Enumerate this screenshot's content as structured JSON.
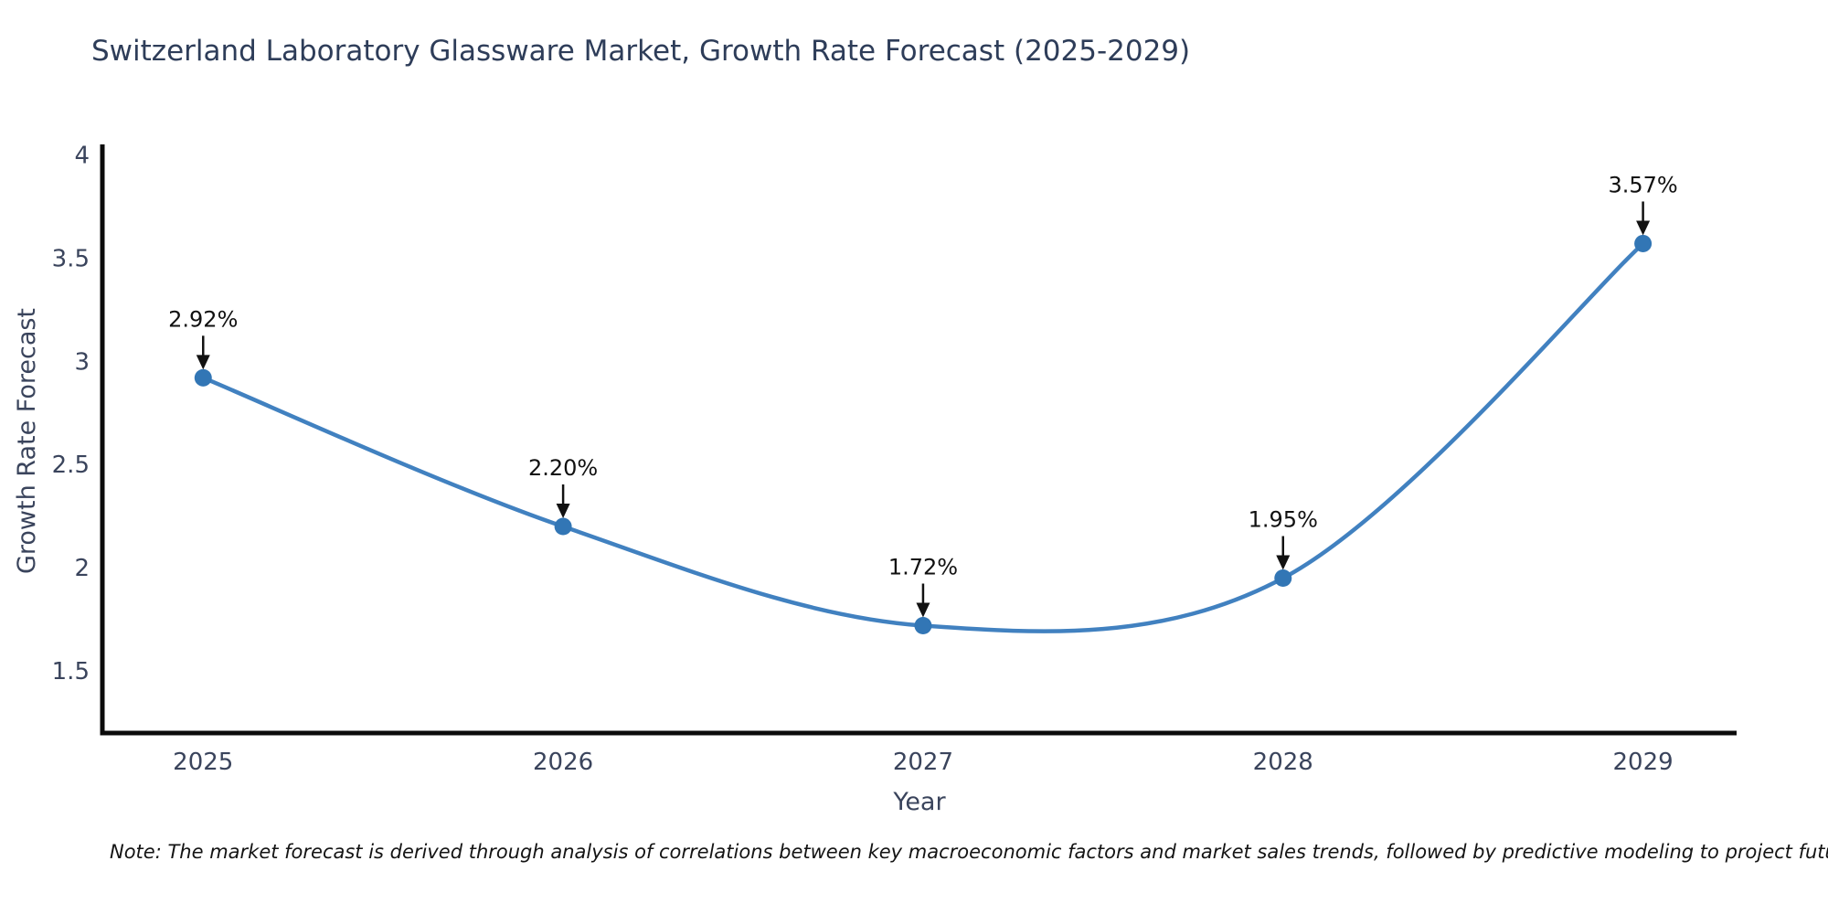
{
  "title": "Switzerland Laboratory Glassware Market, Growth Rate Forecast (2025-2029)",
  "note": "Note: The market forecast is derived through analysis of correlations between key macroeconomic factors and market sales trends, followed by predictive modeling to project future sales",
  "chart_data": {
    "type": "line",
    "x": [
      2025,
      2026,
      2027,
      2028,
      2029
    ],
    "series": [
      {
        "name": "Growth Rate Forecast",
        "values": [
          2.92,
          2.2,
          1.72,
          1.95,
          3.57
        ]
      }
    ],
    "point_labels": [
      "2.92%",
      "2.20%",
      "1.72%",
      "1.95%",
      "3.57%"
    ],
    "title": "Switzerland Laboratory Glassware Market, Growth Rate Forecast (2025-2029)",
    "xlabel": "Year",
    "ylabel": "Growth Rate Forecast",
    "xtick_labels": [
      "2025",
      "2026",
      "2027",
      "2028",
      "2029"
    ],
    "yticks": [
      1.5,
      2,
      2.5,
      3,
      3.5,
      4
    ],
    "ytick_labels": [
      "1.5",
      "2",
      "2.5",
      "3",
      "3.5",
      "4"
    ],
    "xlim": [
      2024.72,
      2029.26
    ],
    "ylim": [
      1.2,
      4.05
    ],
    "grid": false,
    "legend_position": "none",
    "line_color": "#4181c0",
    "marker_color": "#3276b5",
    "annotation_color": "#111111",
    "axis_color": "#0b0b0b",
    "tick_color": "#3a445c"
  }
}
